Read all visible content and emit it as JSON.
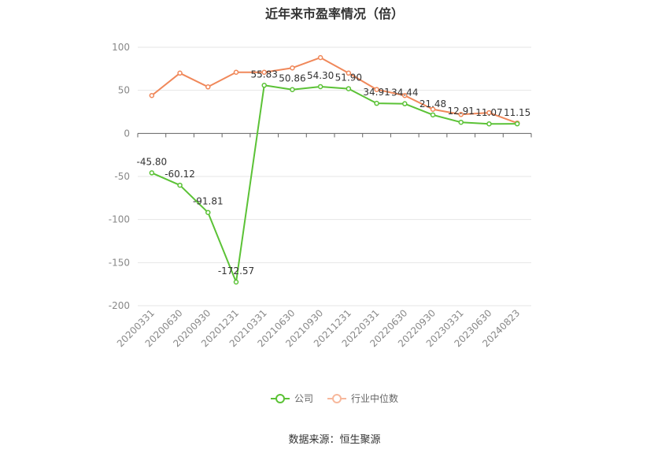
{
  "chart_data": {
    "type": "line",
    "title": "近年来市盈率情况（倍）",
    "categories": [
      "20200331",
      "20200630",
      "20200930",
      "20201231",
      "20210331",
      "20210630",
      "20210930",
      "20211231",
      "20220331",
      "20220630",
      "20220930",
      "20230331",
      "20230630",
      "20240823"
    ],
    "series": [
      {
        "name": "公司",
        "color": "#5bc236",
        "values": [
          -45.8,
          -60.12,
          -91.81,
          -172.57,
          55.83,
          50.86,
          54.3,
          51.9,
          34.91,
          34.44,
          21.48,
          12.91,
          11.07,
          11.15
        ],
        "labels": [
          "-45.80",
          "-60.12",
          "-91.81",
          "-172.57",
          "55.83",
          "50.86",
          "54.30",
          "51.90",
          "34.91",
          "34.44",
          "21.48",
          "12.91",
          "11.07",
          "11.15"
        ]
      },
      {
        "name": "行业中位数",
        "color": "#f0885a",
        "values": [
          44,
          70,
          54,
          71,
          71,
          76,
          88,
          70,
          51,
          44,
          28,
          22,
          24,
          12
        ]
      }
    ],
    "ylim": [
      -200,
      100
    ],
    "yticks": [
      "100",
      "50",
      "0",
      "-50",
      "-100",
      "-150",
      "-200"
    ],
    "grid": true,
    "legend_position": "bottom"
  },
  "source": "数据来源：恒生聚源"
}
